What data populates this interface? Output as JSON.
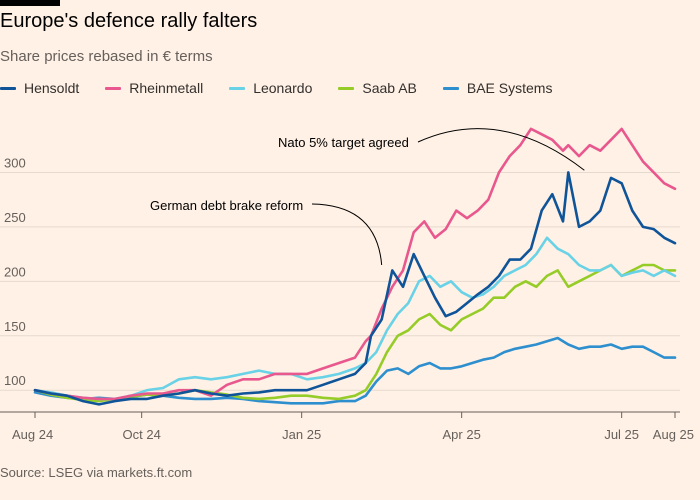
{
  "header": {
    "title": "Europe's defence rally falters",
    "subtitle": "Share prices rebased in € terms"
  },
  "footer": {
    "source": "Source: LSEG via markets.ft.com"
  },
  "chart_data": {
    "type": "line",
    "title": "Europe's defence rally falters",
    "subtitle": "Share prices rebased in € terms",
    "xlabel": "",
    "ylabel": "",
    "xlim": [
      0,
      12
    ],
    "ylim": [
      80,
      350
    ],
    "x_unit": "months since Aug 2024",
    "x_ticks": [
      {
        "label": "Aug 24",
        "x": 0
      },
      {
        "label": "Oct 24",
        "x": 2
      },
      {
        "label": "Jan 25",
        "x": 5
      },
      {
        "label": "Apr 25",
        "x": 8
      },
      {
        "label": "Jul 25",
        "x": 11
      },
      {
        "label": "Aug 25",
        "x": 12
      }
    ],
    "y_ticks": [
      100,
      150,
      200,
      250,
      300
    ],
    "grid": true,
    "series": [
      {
        "name": "Hensoldt",
        "color": "#0f5499",
        "x": [
          0,
          0.3,
          0.6,
          0.9,
          1.2,
          1.5,
          1.8,
          2.1,
          2.4,
          2.7,
          3.0,
          3.3,
          3.6,
          3.9,
          4.2,
          4.5,
          4.8,
          5.1,
          5.4,
          5.7,
          6.0,
          6.2,
          6.3,
          6.5,
          6.7,
          6.9,
          7.1,
          7.3,
          7.5,
          7.7,
          7.9,
          8.1,
          8.3,
          8.5,
          8.7,
          8.9,
          9.1,
          9.3,
          9.5,
          9.7,
          9.9,
          10.0,
          10.2,
          10.4,
          10.6,
          10.8,
          11.0,
          11.2,
          11.4,
          11.6,
          11.8,
          12.0
        ],
        "values": [
          100,
          97,
          95,
          90,
          87,
          90,
          92,
          92,
          95,
          97,
          100,
          97,
          95,
          97,
          98,
          100,
          100,
          100,
          105,
          110,
          115,
          125,
          150,
          165,
          210,
          195,
          225,
          205,
          185,
          168,
          172,
          180,
          188,
          195,
          205,
          220,
          220,
          230,
          265,
          280,
          255,
          300,
          250,
          255,
          265,
          295,
          290,
          265,
          250,
          248,
          240,
          235
        ]
      },
      {
        "name": "Rheinmetall",
        "color": "#e8588e",
        "x": [
          0,
          0.3,
          0.6,
          0.9,
          1.2,
          1.5,
          1.8,
          2.1,
          2.4,
          2.7,
          3.0,
          3.3,
          3.6,
          3.9,
          4.2,
          4.5,
          4.8,
          5.1,
          5.4,
          5.7,
          6.0,
          6.2,
          6.3,
          6.5,
          6.7,
          6.9,
          7.1,
          7.3,
          7.5,
          7.7,
          7.9,
          8.1,
          8.3,
          8.5,
          8.7,
          8.9,
          9.1,
          9.3,
          9.5,
          9.7,
          9.9,
          10.0,
          10.2,
          10.4,
          10.6,
          10.8,
          11.0,
          11.2,
          11.4,
          11.6,
          11.8,
          12.0
        ],
        "values": [
          100,
          97,
          95,
          93,
          92,
          92,
          95,
          97,
          97,
          100,
          100,
          95,
          105,
          110,
          110,
          115,
          115,
          115,
          120,
          125,
          130,
          145,
          150,
          175,
          195,
          210,
          245,
          255,
          240,
          248,
          265,
          258,
          265,
          275,
          300,
          315,
          325,
          340,
          335,
          330,
          320,
          325,
          315,
          325,
          320,
          330,
          340,
          325,
          310,
          300,
          290,
          285
        ]
      },
      {
        "name": "Leonardo",
        "color": "#69d2e7",
        "x": [
          0,
          0.3,
          0.6,
          0.9,
          1.2,
          1.5,
          1.8,
          2.1,
          2.4,
          2.7,
          3.0,
          3.3,
          3.6,
          3.9,
          4.2,
          4.5,
          4.8,
          5.1,
          5.4,
          5.7,
          6.0,
          6.2,
          6.4,
          6.6,
          6.8,
          7.0,
          7.2,
          7.4,
          7.6,
          7.8,
          8.0,
          8.2,
          8.4,
          8.6,
          8.8,
          9.0,
          9.2,
          9.4,
          9.6,
          9.8,
          10.0,
          10.2,
          10.4,
          10.6,
          10.8,
          11.0,
          11.2,
          11.4,
          11.6,
          11.8,
          12.0
        ],
        "values": [
          100,
          98,
          95,
          93,
          92,
          92,
          95,
          100,
          102,
          110,
          112,
          110,
          112,
          115,
          118,
          115,
          115,
          110,
          112,
          115,
          120,
          125,
          135,
          155,
          170,
          180,
          200,
          205,
          195,
          200,
          190,
          185,
          188,
          195,
          205,
          210,
          215,
          225,
          240,
          230,
          225,
          215,
          210,
          210,
          215,
          205,
          208,
          210,
          205,
          210,
          205
        ]
      },
      {
        "name": "Saab AB",
        "color": "#96cc28",
        "x": [
          0,
          0.3,
          0.6,
          0.9,
          1.2,
          1.5,
          1.8,
          2.1,
          2.4,
          2.7,
          3.0,
          3.3,
          3.6,
          3.9,
          4.2,
          4.5,
          4.8,
          5.1,
          5.4,
          5.7,
          6.0,
          6.2,
          6.4,
          6.6,
          6.8,
          7.0,
          7.2,
          7.4,
          7.6,
          7.8,
          8.0,
          8.2,
          8.4,
          8.6,
          8.8,
          9.0,
          9.2,
          9.4,
          9.6,
          9.8,
          10.0,
          10.2,
          10.4,
          10.6,
          10.8,
          11.0,
          11.2,
          11.4,
          11.6,
          11.8,
          12.0
        ],
        "values": [
          100,
          96,
          93,
          91,
          90,
          92,
          94,
          96,
          95,
          97,
          100,
          98,
          96,
          93,
          92,
          93,
          95,
          95,
          93,
          92,
          95,
          100,
          115,
          135,
          150,
          155,
          165,
          170,
          160,
          155,
          165,
          170,
          175,
          185,
          185,
          195,
          200,
          195,
          205,
          210,
          195,
          200,
          205,
          210,
          215,
          205,
          210,
          215,
          215,
          210,
          210
        ]
      },
      {
        "name": "BAE Systems",
        "color": "#2e8fcf",
        "x": [
          0,
          0.3,
          0.6,
          0.9,
          1.2,
          1.5,
          1.8,
          2.1,
          2.4,
          2.7,
          3.0,
          3.3,
          3.6,
          3.9,
          4.2,
          4.5,
          4.8,
          5.1,
          5.4,
          5.7,
          6.0,
          6.2,
          6.4,
          6.6,
          6.8,
          7.0,
          7.2,
          7.4,
          7.6,
          7.8,
          8.0,
          8.2,
          8.4,
          8.6,
          8.8,
          9.0,
          9.2,
          9.4,
          9.6,
          9.8,
          10.0,
          10.2,
          10.4,
          10.6,
          10.8,
          11.0,
          11.2,
          11.4,
          11.6,
          11.8,
          12.0
        ],
        "values": [
          98,
          95,
          93,
          92,
          93,
          92,
          94,
          96,
          95,
          93,
          92,
          92,
          93,
          92,
          90,
          89,
          88,
          88,
          88,
          90,
          90,
          95,
          108,
          118,
          120,
          115,
          122,
          125,
          120,
          120,
          122,
          125,
          128,
          130,
          135,
          138,
          140,
          142,
          145,
          148,
          142,
          138,
          140,
          140,
          142,
          138,
          140,
          140,
          135,
          130,
          130
        ]
      }
    ],
    "annotations": [
      {
        "label": "German debt brake reform",
        "x": 6.5,
        "y": 215
      },
      {
        "label": "Nato 5% target agreed",
        "x": 10.3,
        "y": 302
      }
    ]
  }
}
